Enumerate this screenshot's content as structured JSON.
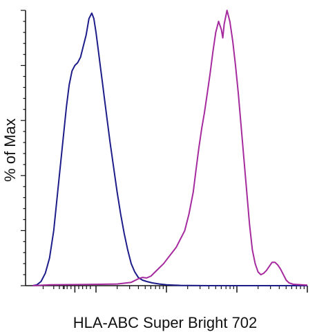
{
  "chart_data": {
    "type": "line",
    "title": "",
    "xlabel": "HLA-ABC Super Bright 702",
    "ylabel": "% of Max",
    "x_scale": "log",
    "xlim": [
      0,
      4
    ],
    "ylim": [
      0,
      100
    ],
    "grid": false,
    "legend": "none",
    "tick_labels_visible": false,
    "series": [
      {
        "color": "#1c1c8a",
        "points": [
          [
            0.1,
            0
          ],
          [
            0.16,
            0.3
          ],
          [
            0.22,
            1.5
          ],
          [
            0.28,
            4.5
          ],
          [
            0.34,
            10
          ],
          [
            0.4,
            20
          ],
          [
            0.46,
            35
          ],
          [
            0.5,
            45
          ],
          [
            0.54,
            55
          ],
          [
            0.58,
            65
          ],
          [
            0.62,
            73
          ],
          [
            0.66,
            78
          ],
          [
            0.7,
            80
          ],
          [
            0.74,
            81
          ],
          [
            0.78,
            83
          ],
          [
            0.82,
            87
          ],
          [
            0.86,
            91
          ],
          [
            0.9,
            97
          ],
          [
            0.94,
            99
          ],
          [
            0.97,
            97
          ],
          [
            1.0,
            92
          ],
          [
            1.03,
            86
          ],
          [
            1.06,
            80
          ],
          [
            1.09,
            74
          ],
          [
            1.12,
            68
          ],
          [
            1.16,
            60
          ],
          [
            1.2,
            52
          ],
          [
            1.25,
            43
          ],
          [
            1.3,
            34
          ],
          [
            1.35,
            26
          ],
          [
            1.4,
            19
          ],
          [
            1.45,
            13
          ],
          [
            1.5,
            8
          ],
          [
            1.55,
            5
          ],
          [
            1.6,
            3
          ],
          [
            1.66,
            2
          ],
          [
            1.72,
            1.5
          ],
          [
            1.8,
            1
          ],
          [
            1.9,
            0.6
          ],
          [
            2.0,
            0.3
          ],
          [
            2.2,
            0.1
          ],
          [
            2.6,
            0
          ],
          [
            4.0,
            0
          ]
        ]
      },
      {
        "color": "#a52a9e",
        "points": [
          [
            0.1,
            0
          ],
          [
            0.35,
            0.3
          ],
          [
            0.8,
            0.4
          ],
          [
            1.3,
            0.6
          ],
          [
            1.5,
            1.2
          ],
          [
            1.6,
            2.5
          ],
          [
            1.66,
            3
          ],
          [
            1.72,
            2.8
          ],
          [
            1.78,
            3.5
          ],
          [
            1.84,
            5
          ],
          [
            1.9,
            6.5
          ],
          [
            1.96,
            8
          ],
          [
            2.02,
            10
          ],
          [
            2.08,
            12
          ],
          [
            2.14,
            14
          ],
          [
            2.2,
            17
          ],
          [
            2.26,
            20
          ],
          [
            2.32,
            26
          ],
          [
            2.38,
            34
          ],
          [
            2.42,
            42
          ],
          [
            2.46,
            50
          ],
          [
            2.5,
            57
          ],
          [
            2.54,
            63
          ],
          [
            2.58,
            70
          ],
          [
            2.62,
            77
          ],
          [
            2.66,
            85
          ],
          [
            2.7,
            92
          ],
          [
            2.74,
            96
          ],
          [
            2.78,
            93
          ],
          [
            2.8,
            90
          ],
          [
            2.82,
            95
          ],
          [
            2.86,
            100
          ],
          [
            2.9,
            96
          ],
          [
            2.94,
            89
          ],
          [
            2.98,
            80
          ],
          [
            3.02,
            70
          ],
          [
            3.06,
            58
          ],
          [
            3.1,
            46
          ],
          [
            3.14,
            34
          ],
          [
            3.18,
            22
          ],
          [
            3.22,
            13
          ],
          [
            3.26,
            8
          ],
          [
            3.3,
            5
          ],
          [
            3.34,
            4
          ],
          [
            3.38,
            4.5
          ],
          [
            3.42,
            5.5
          ],
          [
            3.46,
            7
          ],
          [
            3.5,
            8.5
          ],
          [
            3.54,
            8.5
          ],
          [
            3.58,
            7.5
          ],
          [
            3.62,
            6
          ],
          [
            3.66,
            4
          ],
          [
            3.7,
            2
          ],
          [
            3.74,
            1
          ],
          [
            3.8,
            0.5
          ],
          [
            4.0,
            0.2
          ]
        ]
      }
    ]
  }
}
